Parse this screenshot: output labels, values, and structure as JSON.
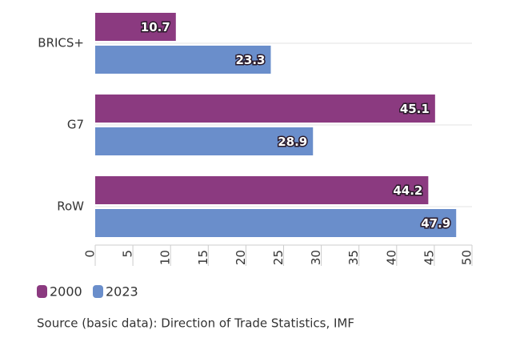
{
  "chart_data": {
    "type": "hbar",
    "categories": [
      "BRICS+",
      "G7",
      "RoW"
    ],
    "series": [
      {
        "name": "2000",
        "color": "#8b3a80",
        "values": [
          10.7,
          45.1,
          44.2
        ]
      },
      {
        "name": "2023",
        "color": "#6a8ecb",
        "values": [
          23.3,
          28.9,
          47.9
        ]
      }
    ],
    "xlim": [
      0,
      50
    ],
    "xticks": [
      0,
      5,
      10,
      15,
      20,
      25,
      30,
      35,
      40,
      45,
      50
    ],
    "source": "Source (basic data): Direction of Trade Statistics, IMF"
  }
}
